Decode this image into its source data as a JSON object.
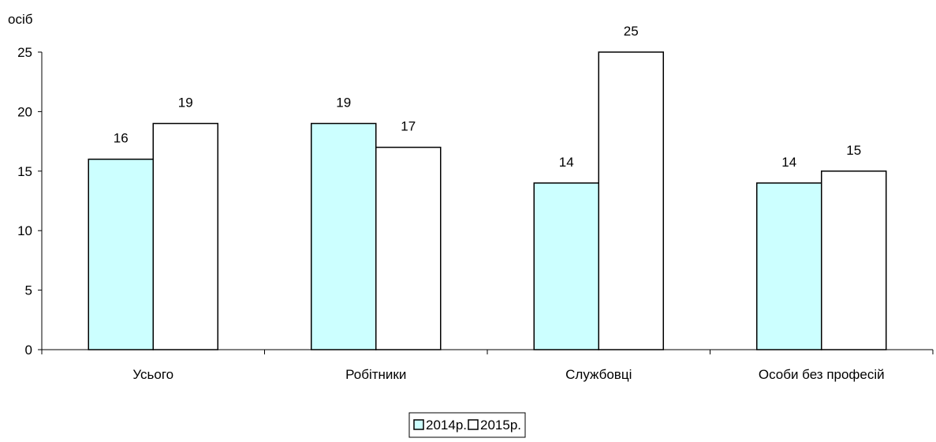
{
  "chart_data": {
    "type": "bar",
    "ylabel": "осіб",
    "ylim": [
      0,
      25
    ],
    "yticks": [
      0,
      5,
      10,
      15,
      20,
      25
    ],
    "categories": [
      "Усього",
      "Робітники",
      "Службовці",
      "Особи без  професій"
    ],
    "series": [
      {
        "name": "2014р.",
        "values": [
          16,
          19,
          14,
          14
        ],
        "color": "#ccffff"
      },
      {
        "name": "2015р.",
        "values": [
          19,
          17,
          25,
          15
        ],
        "color": "#ffffff"
      }
    ],
    "grid": false,
    "legend": "bottom-center"
  }
}
